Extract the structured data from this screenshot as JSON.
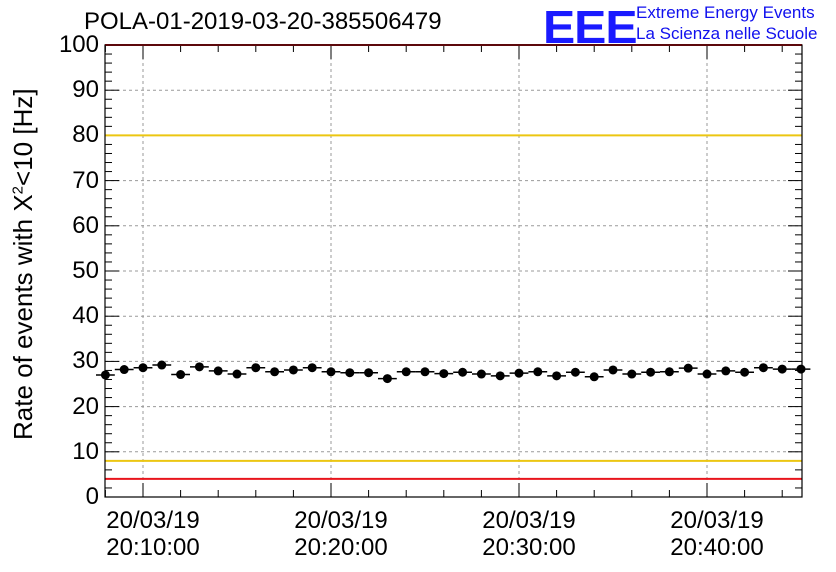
{
  "chart_data": {
    "type": "scatter",
    "title": "POLA-01-2019-03-20-385506479",
    "ylabel_prefix": "Rate of events with ",
    "ylabel_sym": "X",
    "ylabel_sup": "2",
    "ylabel_suffix": "<10 [Hz]",
    "ylim": [
      0,
      100
    ],
    "y_ticks": [
      "0",
      "10",
      "20",
      "30",
      "40",
      "50",
      "60",
      "70",
      "80",
      "90",
      "100"
    ],
    "x_ticks": [
      {
        "date": "20/03/19",
        "time": "20:10:00",
        "minute": 10
      },
      {
        "date": "20/03/19",
        "time": "20:20:00",
        "minute": 20
      },
      {
        "date": "20/03/19",
        "time": "20:30:00",
        "minute": 30
      },
      {
        "date": "20/03/19",
        "time": "20:40:00",
        "minute": 40
      }
    ],
    "grid": true,
    "reference_lines": [
      {
        "y": 100,
        "color": "#e8141c"
      },
      {
        "y": 80,
        "color": "#ecc612"
      },
      {
        "y": 8,
        "color": "#ecc612"
      },
      {
        "y": 4,
        "color": "#e8141c"
      }
    ],
    "series": [
      {
        "color": "#000000",
        "x": [
          8.0,
          9.0,
          10.0,
          11.0,
          12.0,
          13.0,
          14.0,
          15.0,
          16.0,
          17.0,
          18.0,
          19.0,
          20.0,
          21.0,
          22.0,
          23.0,
          24.0,
          25.0,
          26.0,
          27.0,
          28.0,
          29.0,
          30.0,
          31.0,
          32.0,
          33.0,
          34.0,
          35.0,
          36.0,
          37.0,
          38.0,
          39.0,
          40.0,
          41.0,
          42.0,
          43.0,
          44.0,
          45.0
        ],
        "y": [
          27.0,
          28.2,
          28.6,
          29.2,
          27.1,
          28.8,
          27.9,
          27.2,
          28.6,
          27.7,
          28.1,
          28.6,
          27.7,
          27.5,
          27.5,
          26.2,
          27.7,
          27.7,
          27.3,
          27.6,
          27.2,
          26.8,
          27.4,
          27.7,
          26.8,
          27.6,
          26.6,
          28.1,
          27.2,
          27.6,
          27.7,
          28.5,
          27.2,
          27.9,
          27.6,
          28.6,
          28.3,
          28.3
        ]
      }
    ]
  },
  "logo": {
    "mark": "EEE",
    "line1": "Extreme Energy Events",
    "line2": "La Scienza nelle Scuole"
  }
}
